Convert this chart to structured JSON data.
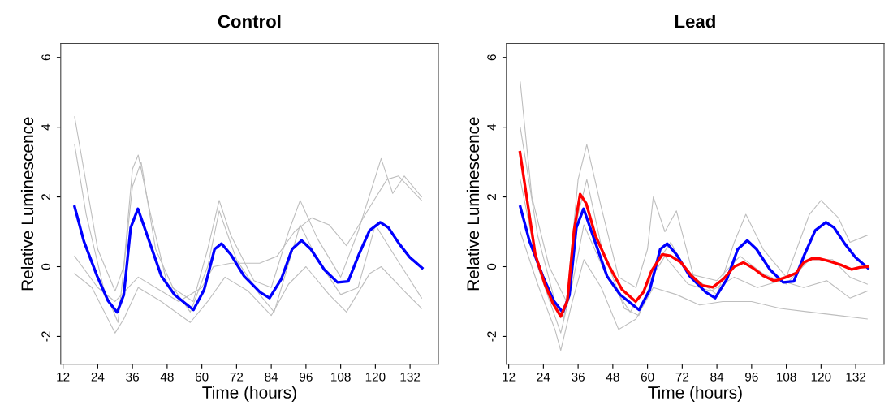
{
  "chart_data": [
    {
      "type": "line",
      "title": "Control",
      "xlabel": "Time (hours)",
      "ylabel": "Relative Luminescence",
      "xlim": [
        11.2,
        141.8
      ],
      "ylim": [
        -2.8,
        6.4
      ],
      "xticks": [
        12,
        24,
        36,
        48,
        60,
        72,
        84,
        96,
        108,
        120,
        132
      ],
      "yticks": [
        -2,
        0,
        2,
        4,
        6
      ],
      "grid": false,
      "series": [
        {
          "color": "#bebebe",
          "x": [
            16,
            20,
            24,
            30,
            33,
            36,
            38,
            42,
            48,
            57,
            62,
            66,
            70,
            78,
            84,
            90,
            94,
            100,
            108,
            114,
            122,
            126,
            130,
            136
          ],
          "values": [
            4.3,
            2.4,
            0.5,
            -0.7,
            0.0,
            2.8,
            3.2,
            1.6,
            -0.5,
            -1.0,
            0.5,
            1.9,
            0.9,
            -0.4,
            -0.6,
            1.0,
            1.9,
            0.8,
            -0.3,
            1.0,
            3.1,
            2.1,
            2.6,
            2.0
          ]
        },
        {
          "color": "#bebebe",
          "x": [
            16,
            22,
            30,
            33,
            38,
            46,
            56,
            62,
            68,
            76,
            84,
            90,
            96,
            104,
            110,
            118,
            122,
            130,
            136
          ],
          "values": [
            -0.2,
            -0.6,
            -1.9,
            -1.5,
            -0.6,
            -1.0,
            -1.6,
            -1.0,
            -0.3,
            -0.7,
            -1.4,
            -0.5,
            0.0,
            -0.8,
            -1.3,
            -0.2,
            0.0,
            -0.7,
            -1.2
          ]
        },
        {
          "color": "#bebebe",
          "x": [
            16,
            24,
            30,
            38,
            44,
            52,
            60,
            64,
            70,
            80,
            86,
            92,
            98,
            104,
            110,
            118,
            124,
            128,
            136
          ],
          "values": [
            0.3,
            -0.6,
            -1.0,
            -0.3,
            -0.6,
            -1.0,
            -0.6,
            0.0,
            0.1,
            0.1,
            0.3,
            1.0,
            1.4,
            1.2,
            0.6,
            1.7,
            2.5,
            2.6,
            1.9
          ]
        },
        {
          "color": "#bebebe",
          "x": [
            16,
            20,
            26,
            31,
            36,
            39,
            44,
            50,
            56,
            62,
            66,
            72,
            80,
            85,
            94,
            100,
            108,
            114,
            120,
            126,
            136
          ],
          "values": [
            3.5,
            1.5,
            -0.6,
            -1.6,
            2.3,
            3.0,
            0.5,
            -0.6,
            -1.3,
            0.0,
            1.6,
            0.2,
            -0.8,
            -1.3,
            1.2,
            0.2,
            -0.8,
            -0.6,
            1.2,
            0.4,
            -0.9
          ]
        },
        {
          "color": "#0000ff",
          "x": [
            16,
            19.2,
            23.8,
            27.5,
            30.7,
            33,
            35.4,
            37.9,
            41.8,
            46,
            50.6,
            57.1,
            60.8,
            64.4,
            66.8,
            70,
            74.6,
            80.1,
            83.4,
            87.5,
            91.2,
            94.5,
            97.7,
            102.3,
            106.9,
            110.6,
            114.3,
            118,
            121.7,
            124.5,
            128.2,
            131.9,
            136.2
          ],
          "values": [
            1.72,
            0.73,
            -0.27,
            -0.97,
            -1.31,
            -0.81,
            1.12,
            1.66,
            0.73,
            -0.27,
            -0.81,
            -1.24,
            -0.66,
            0.5,
            0.66,
            0.35,
            -0.27,
            -0.73,
            -0.9,
            -0.35,
            0.5,
            0.75,
            0.5,
            -0.08,
            -0.45,
            -0.42,
            0.35,
            1.04,
            1.27,
            1.12,
            0.66,
            0.27,
            -0.04
          ]
        }
      ]
    },
    {
      "type": "line",
      "title": "Lead",
      "xlabel": "Time (hours)",
      "ylabel": "Relative Luminescence",
      "xlim": [
        11.2,
        141.8
      ],
      "ylim": [
        -2.8,
        6.4
      ],
      "xticks": [
        12,
        24,
        36,
        48,
        60,
        72,
        84,
        96,
        108,
        120,
        132
      ],
      "yticks": [
        -2,
        0,
        2,
        4,
        6
      ],
      "grid": false,
      "series": [
        {
          "color": "#bebebe",
          "x": [
            16,
            20,
            26,
            32,
            36,
            39,
            44,
            50,
            56,
            60,
            62,
            66,
            70,
            76,
            84,
            90,
            94,
            100,
            108,
            116,
            120,
            126,
            130,
            136
          ],
          "values": [
            5.3,
            2.0,
            0.0,
            -1.0,
            2.5,
            3.5,
            1.7,
            -0.3,
            -0.6,
            0.5,
            2.0,
            1.0,
            1.6,
            -0.3,
            -0.8,
            0.7,
            1.5,
            0.5,
            -0.3,
            1.5,
            1.9,
            1.4,
            0.7,
            0.9
          ]
        },
        {
          "color": "#bebebe",
          "x": [
            16,
            22,
            28,
            30,
            34,
            38,
            44,
            50,
            56,
            62,
            70,
            78,
            86,
            96,
            106,
            116,
            126,
            136
          ],
          "values": [
            1.0,
            -0.5,
            -1.8,
            -2.4,
            -1.0,
            0.2,
            -0.6,
            -1.8,
            -1.5,
            -0.6,
            -0.8,
            -1.1,
            -1.0,
            -1.0,
            -1.2,
            -1.3,
            -1.4,
            -1.5
          ]
        },
        {
          "color": "#bebebe",
          "x": [
            16,
            22,
            28,
            31,
            36,
            39,
            44,
            52,
            57,
            64,
            68,
            74,
            84,
            92,
            100,
            108,
            116,
            124,
            130,
            136
          ],
          "values": [
            4.0,
            0.9,
            -1.0,
            -1.5,
            1.5,
            2.5,
            0.6,
            -1.2,
            -1.4,
            0.2,
            0.7,
            -0.2,
            -0.4,
            0.3,
            -0.2,
            -0.5,
            0.2,
            0.2,
            -0.3,
            -0.5
          ]
        },
        {
          "color": "#bebebe",
          "x": [
            16,
            22,
            30,
            34,
            38,
            46,
            54,
            60,
            66,
            74,
            82,
            90,
            98,
            106,
            114,
            122,
            130,
            136
          ],
          "values": [
            2.5,
            0.0,
            -1.9,
            -0.5,
            1.2,
            -0.3,
            -1.3,
            -0.5,
            0.3,
            -0.5,
            -0.7,
            -0.3,
            -0.6,
            -0.4,
            -0.6,
            -0.4,
            -0.9,
            -0.7
          ]
        },
        {
          "color": "#0000ff",
          "x": [
            16,
            19.2,
            23.8,
            27.5,
            30.7,
            33,
            35.4,
            37.9,
            41.8,
            46,
            50.6,
            57.1,
            60.8,
            64.4,
            66.8,
            70,
            74.6,
            80.1,
            83.4,
            87.5,
            91.2,
            94.5,
            97.7,
            102.3,
            106.9,
            110.6,
            114.3,
            118,
            121.7,
            124.5,
            128.2,
            131.9,
            136.2
          ],
          "values": [
            1.72,
            0.73,
            -0.27,
            -0.97,
            -1.31,
            -0.81,
            1.12,
            1.66,
            0.73,
            -0.27,
            -0.81,
            -1.24,
            -0.66,
            0.5,
            0.66,
            0.35,
            -0.27,
            -0.73,
            -0.9,
            -0.35,
            0.5,
            0.75,
            0.5,
            -0.08,
            -0.45,
            -0.42,
            0.35,
            1.04,
            1.27,
            1.12,
            0.66,
            0.27,
            -0.04
          ]
        },
        {
          "color": "#ff0000",
          "x": [
            15.9,
            18,
            21.2,
            24.5,
            27.2,
            30,
            32.3,
            34.6,
            36.7,
            38.8,
            42,
            46.6,
            51.2,
            55.9,
            58.6,
            61.4,
            65.1,
            67.9,
            71.6,
            75.3,
            78.9,
            82.6,
            86.3,
            90,
            93.2,
            96.5,
            100.2,
            103.9,
            107.6,
            111.3,
            114,
            116.8,
            119.5,
            123.2,
            126.9,
            130.6,
            133.4,
            136.2
          ],
          "values": [
            3.28,
            2.12,
            0.35,
            -0.5,
            -1.04,
            -1.43,
            -0.97,
            1.04,
            2.08,
            1.81,
            0.89,
            0.04,
            -0.66,
            -1.0,
            -0.73,
            -0.12,
            0.35,
            0.31,
            0.12,
            -0.27,
            -0.54,
            -0.59,
            -0.35,
            0.0,
            0.12,
            -0.04,
            -0.27,
            -0.41,
            -0.31,
            -0.19,
            0.12,
            0.23,
            0.23,
            0.15,
            0.05,
            -0.08,
            -0.02,
            0.0
          ]
        }
      ]
    }
  ]
}
